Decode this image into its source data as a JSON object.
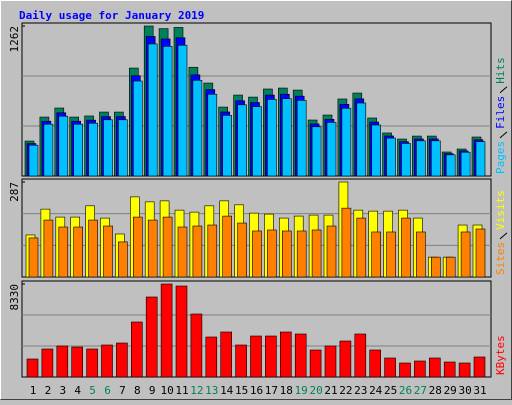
{
  "chart_data": [
    {
      "type": "bar",
      "title": "Daily usage for January 2019",
      "series": [
        {
          "name": "Hits",
          "color": "#00805c",
          "values": [
            294,
            496,
            572,
            496,
            505,
            538,
            538,
            908,
            1262,
            1240,
            1250,
            915,
            782,
            580,
            681,
            664,
            732,
            740,
            723,
            471,
            513,
            648,
            698,
            488,
            362,
            311,
            336,
            336,
            202,
            227,
            328
          ]
        },
        {
          "name": "Files",
          "color": "#0000ff",
          "values": [
            273,
            461,
            532,
            461,
            470,
            500,
            500,
            844,
            1174,
            1153,
            1163,
            851,
            727,
            539,
            633,
            618,
            681,
            688,
            672,
            438,
            477,
            603,
            649,
            454,
            337,
            289,
            312,
            312,
            188,
            211,
            305
          ]
        },
        {
          "name": "Pages",
          "color": "#00c0ff",
          "values": [
            259,
            436,
            503,
            436,
            444,
            473,
            473,
            799,
            1111,
            1091,
            1100,
            805,
            688,
            510,
            599,
            584,
            644,
            651,
            636,
            414,
            451,
            570,
            614,
            429,
            319,
            274,
            296,
            296,
            178,
            200,
            289
          ]
        }
      ],
      "ylim": [
        0,
        1262
      ],
      "yticks": [
        1262
      ],
      "grid": true,
      "grid_divisions": 3
    },
    {
      "type": "bar",
      "series": [
        {
          "name": "Visits",
          "color": "#ffff00",
          "values": [
            127,
            205,
            181,
            181,
            215,
            178,
            130,
            242,
            227,
            230,
            202,
            196,
            215,
            230,
            218,
            193,
            190,
            178,
            184,
            187,
            187,
            287,
            202,
            199,
            199,
            202,
            178,
            60,
            60,
            157,
            157
          ]
        },
        {
          "name": "Sites",
          "color": "#ff8000",
          "values": [
            118,
            172,
            151,
            151,
            172,
            154,
            106,
            181,
            172,
            181,
            151,
            154,
            157,
            184,
            163,
            139,
            142,
            139,
            139,
            142,
            154,
            208,
            178,
            136,
            136,
            178,
            136,
            60,
            60,
            136,
            145
          ]
        }
      ],
      "ylim": [
        0,
        287
      ],
      "yticks": [
        287
      ],
      "grid": true,
      "grid_divisions": 3
    },
    {
      "type": "bar",
      "series": [
        {
          "name": "KBytes",
          "color": "#ff0000",
          "values": [
            1612,
            2508,
            2777,
            2687,
            2508,
            2866,
            3045,
            4926,
            7166,
            8330,
            8151,
            5643,
            3583,
            4031,
            2866,
            3672,
            3672,
            4031,
            3851,
            2418,
            2777,
            3224,
            3851,
            2418,
            1702,
            1254,
            1433,
            1702,
            1343,
            1254,
            1791
          ]
        }
      ],
      "ylim": [
        0,
        8330
      ],
      "yticks": [
        8330
      ],
      "grid": true,
      "grid_divisions": 3,
      "categories": [
        "1",
        "2",
        "3",
        "4",
        "5",
        "6",
        "7",
        "8",
        "9",
        "10",
        "11",
        "12",
        "13",
        "14",
        "15",
        "16",
        "17",
        "18",
        "19",
        "20",
        "21",
        "22",
        "23",
        "24",
        "25",
        "26",
        "27",
        "28",
        "29",
        "30",
        "31"
      ],
      "category_colors": [
        "#000000",
        "#000000",
        "#000000",
        "#000000",
        "#00805c",
        "#00805c",
        "#000000",
        "#000000",
        "#000000",
        "#000000",
        "#000000",
        "#00805c",
        "#00805c",
        "#000000",
        "#000000",
        "#000000",
        "#000000",
        "#000000",
        "#00805c",
        "#00805c",
        "#000000",
        "#000000",
        "#000000",
        "#000000",
        "#000000",
        "#00805c",
        "#00805c",
        "#000000",
        "#000000",
        "#000000",
        "#000000"
      ]
    }
  ]
}
